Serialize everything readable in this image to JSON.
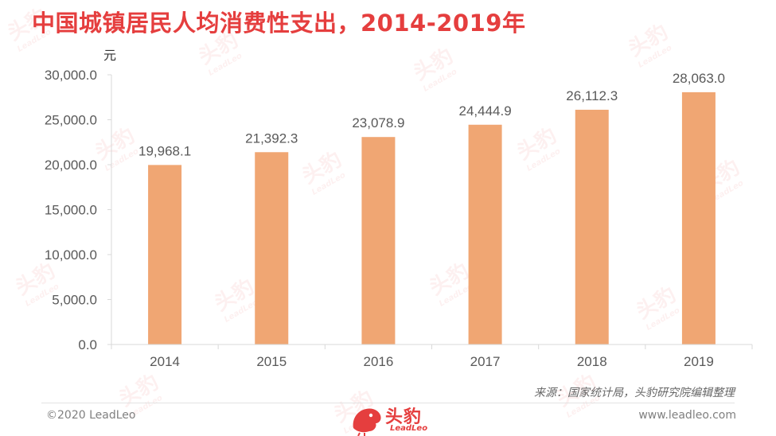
{
  "header": {
    "title": "中国城镇居民人均消费性支出，2014-2019年",
    "unit": "元"
  },
  "colors": {
    "title": "#e53e3e",
    "bar": "#f0a673",
    "axis": "#d9d9d9",
    "text": "#595959",
    "brand": "#e53e3e"
  },
  "chart_data": {
    "type": "bar",
    "categories": [
      "2014",
      "2015",
      "2016",
      "2017",
      "2018",
      "2019"
    ],
    "values": [
      19968.1,
      21392.3,
      23078.9,
      24444.9,
      26112.3,
      28063.0
    ],
    "data_labels": [
      "19,968.1",
      "21,392.3",
      "23,078.9",
      "24,444.9",
      "26,112.3",
      "28,063.0"
    ],
    "ylim": [
      0,
      30000
    ],
    "yticks": [
      0,
      5000,
      10000,
      15000,
      20000,
      25000,
      30000
    ],
    "ytick_labels": [
      "0.0",
      "5,000.0",
      "10,000.0",
      "15,000.0",
      "20,000.0",
      "25,000.0",
      "30,000.0"
    ],
    "ylabel": "元",
    "grid": false,
    "legend": "none"
  },
  "source": "来源：国家统计局，头豹研究院编辑整理",
  "footer": {
    "copyright": "©2020 LeadLeo",
    "website": "www.leadleo.com"
  },
  "logo": {
    "name_cn": "头豹",
    "name_en": "LeadLeo",
    "icon": "leopard-head-icon"
  },
  "watermark": {
    "text_cn": "头豹",
    "text_en": "LeadLeo"
  }
}
